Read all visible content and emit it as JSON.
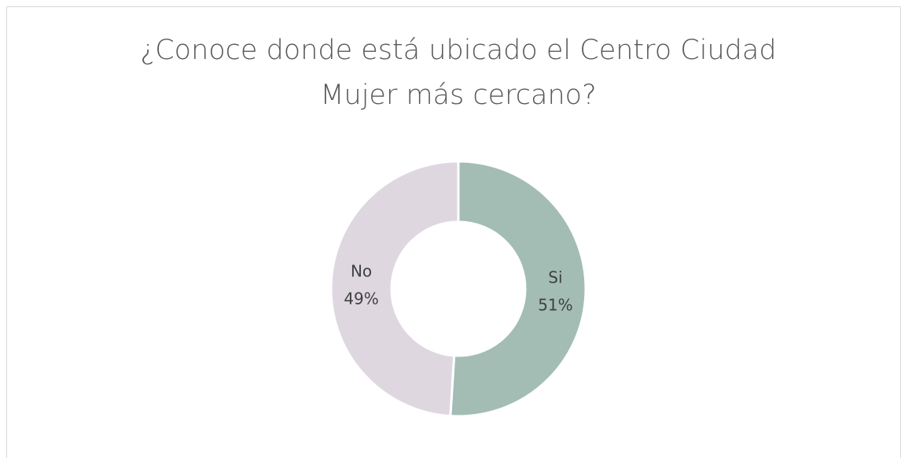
{
  "chart_data": {
    "type": "donut",
    "title": "¿Conoce donde está ubicado el Centro Ciudad Mujer más cercano?",
    "categories": [
      "Si",
      "No"
    ],
    "values": [
      51,
      49
    ],
    "value_labels": [
      "51%",
      "49%"
    ],
    "colors": [
      "#a3bdb5",
      "#ded7e0"
    ]
  }
}
